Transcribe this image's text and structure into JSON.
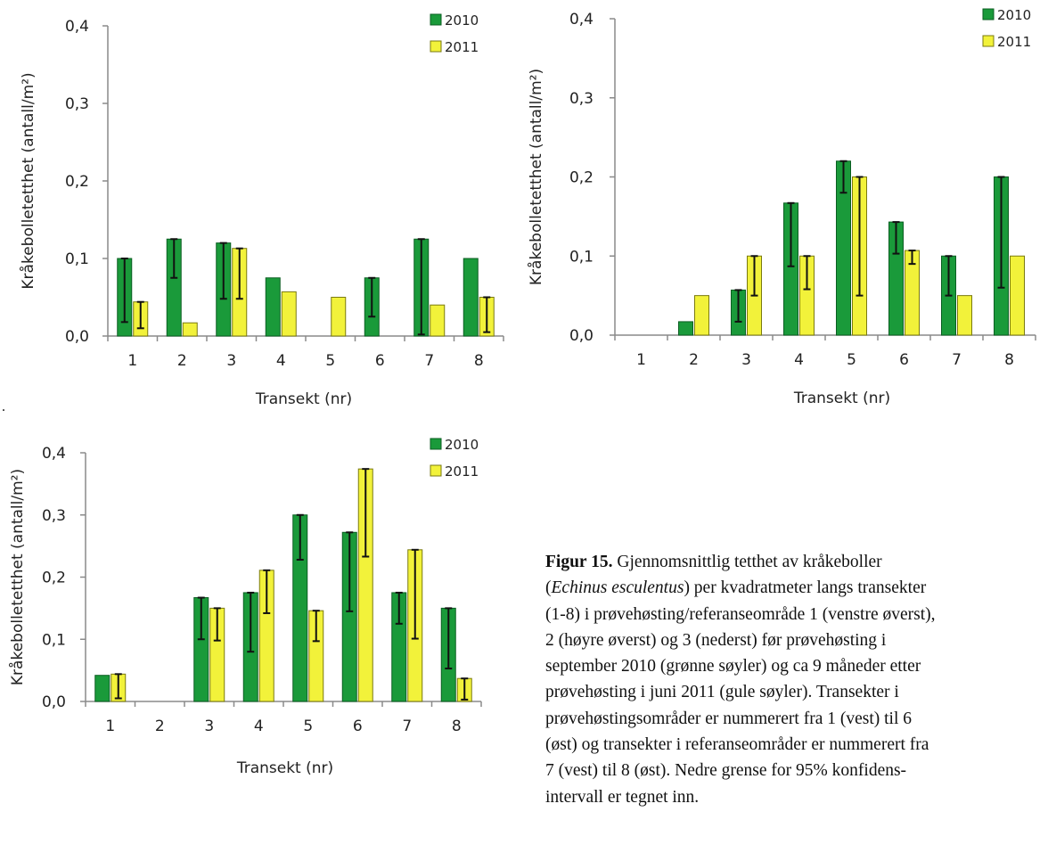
{
  "colors": {
    "green": "#1a9a3a",
    "green_edge": "#0b5e22",
    "yellow": "#f2f23a",
    "yellow_edge": "#7a7a10",
    "axis": "#8a8a8a",
    "error": "#111111"
  },
  "chart_data": [
    {
      "type": "bar",
      "categories": [
        "1",
        "2",
        "3",
        "4",
        "5",
        "6",
        "7",
        "8"
      ],
      "ylabel": "Kråkebolletetthet  (antall/m²)",
      "xlabel": "Transekt  (nr)",
      "ylim": [
        0,
        0.4
      ],
      "yticks": [
        "0,0",
        "0,1",
        "0,2",
        "0,3",
        "0,4"
      ],
      "legend": "top-right",
      "series": [
        {
          "name": "2010",
          "values": [
            0.1,
            0.125,
            0.12,
            0.075,
            null,
            0.075,
            0.125,
            0.1
          ],
          "lower": [
            0.018,
            0.075,
            0.048,
            null,
            null,
            0.025,
            0.002,
            null
          ]
        },
        {
          "name": "2011",
          "values": [
            0.044,
            0.017,
            0.113,
            0.057,
            0.05,
            null,
            0.04,
            0.05
          ],
          "lower": [
            0.01,
            null,
            0.048,
            null,
            null,
            null,
            null,
            0.005
          ]
        }
      ]
    },
    {
      "type": "bar",
      "categories": [
        "1",
        "2",
        "3",
        "4",
        "5",
        "6",
        "7",
        "8"
      ],
      "ylabel": "Kråkebolletetthet  (antall/m²)",
      "xlabel": "Transekt  (nr)",
      "ylim": [
        0,
        0.4
      ],
      "yticks": [
        "0,0",
        "0,1",
        "0,2",
        "0,3",
        "0,4"
      ],
      "legend": "top-right",
      "series": [
        {
          "name": "2010",
          "values": [
            null,
            0.017,
            0.057,
            0.167,
            0.22,
            0.143,
            0.1,
            0.2
          ],
          "lower": [
            null,
            null,
            0.017,
            0.087,
            0.18,
            0.103,
            0.05,
            0.06
          ]
        },
        {
          "name": "2011",
          "values": [
            null,
            0.05,
            0.1,
            0.1,
            0.2,
            0.107,
            0.05,
            0.1
          ],
          "lower": [
            null,
            null,
            0.05,
            0.058,
            0.05,
            0.09,
            null,
            null
          ]
        }
      ]
    },
    {
      "type": "bar",
      "categories": [
        "1",
        "2",
        "3",
        "4",
        "5",
        "6",
        "7",
        "8"
      ],
      "ylabel": "Kråkebolletetthet  (antall/m²)",
      "xlabel": "Transekt  (nr)",
      "ylim": [
        0,
        0.4
      ],
      "yticks": [
        "0,0",
        "0,1",
        "0,2",
        "0,3",
        "0,4"
      ],
      "legend": "top-right",
      "series": [
        {
          "name": "2010",
          "values": [
            0.042,
            null,
            0.167,
            0.175,
            0.3,
            0.272,
            0.175,
            0.15
          ],
          "lower": [
            null,
            null,
            0.1,
            0.08,
            0.228,
            0.145,
            0.125,
            0.053
          ]
        },
        {
          "name": "2011",
          "values": [
            0.044,
            null,
            0.15,
            0.211,
            0.146,
            0.374,
            0.244,
            0.037
          ],
          "lower": [
            0.005,
            null,
            0.098,
            0.142,
            0.097,
            0.233,
            0.101,
            0.003
          ]
        }
      ]
    }
  ],
  "caption": {
    "label": "Figur 15.",
    "line1_rest": " Gjennomsnittlig tetthet av kråkeboller",
    "line2_open": "(",
    "line2_italic": "Echinus esculentus",
    "line2_rest": ") per kvadratmeter langs transekter",
    "line3": "(1-8) i prøvehøsting/referanseområde 1 (venstre øverst),",
    "line4": "2 (høyre øverst) og 3 (nederst) før prøvehøsting i",
    "line5": "september 2010 (grønne søyler) og ca 9 måneder etter",
    "line6": "prøvehøsting i juni 2011 (gule søyler). Transekter i",
    "line7": "prøvehøstingsområder er nummerert fra 1 (vest) til 6",
    "line8": "(øst) og transekter i referanseområder er nummerert fra",
    "line9": "7 (vest) til 8 (øst). Nedre grense for 95% konfidens-",
    "line10": "intervall er tegnet inn."
  },
  "stray_mark": "."
}
